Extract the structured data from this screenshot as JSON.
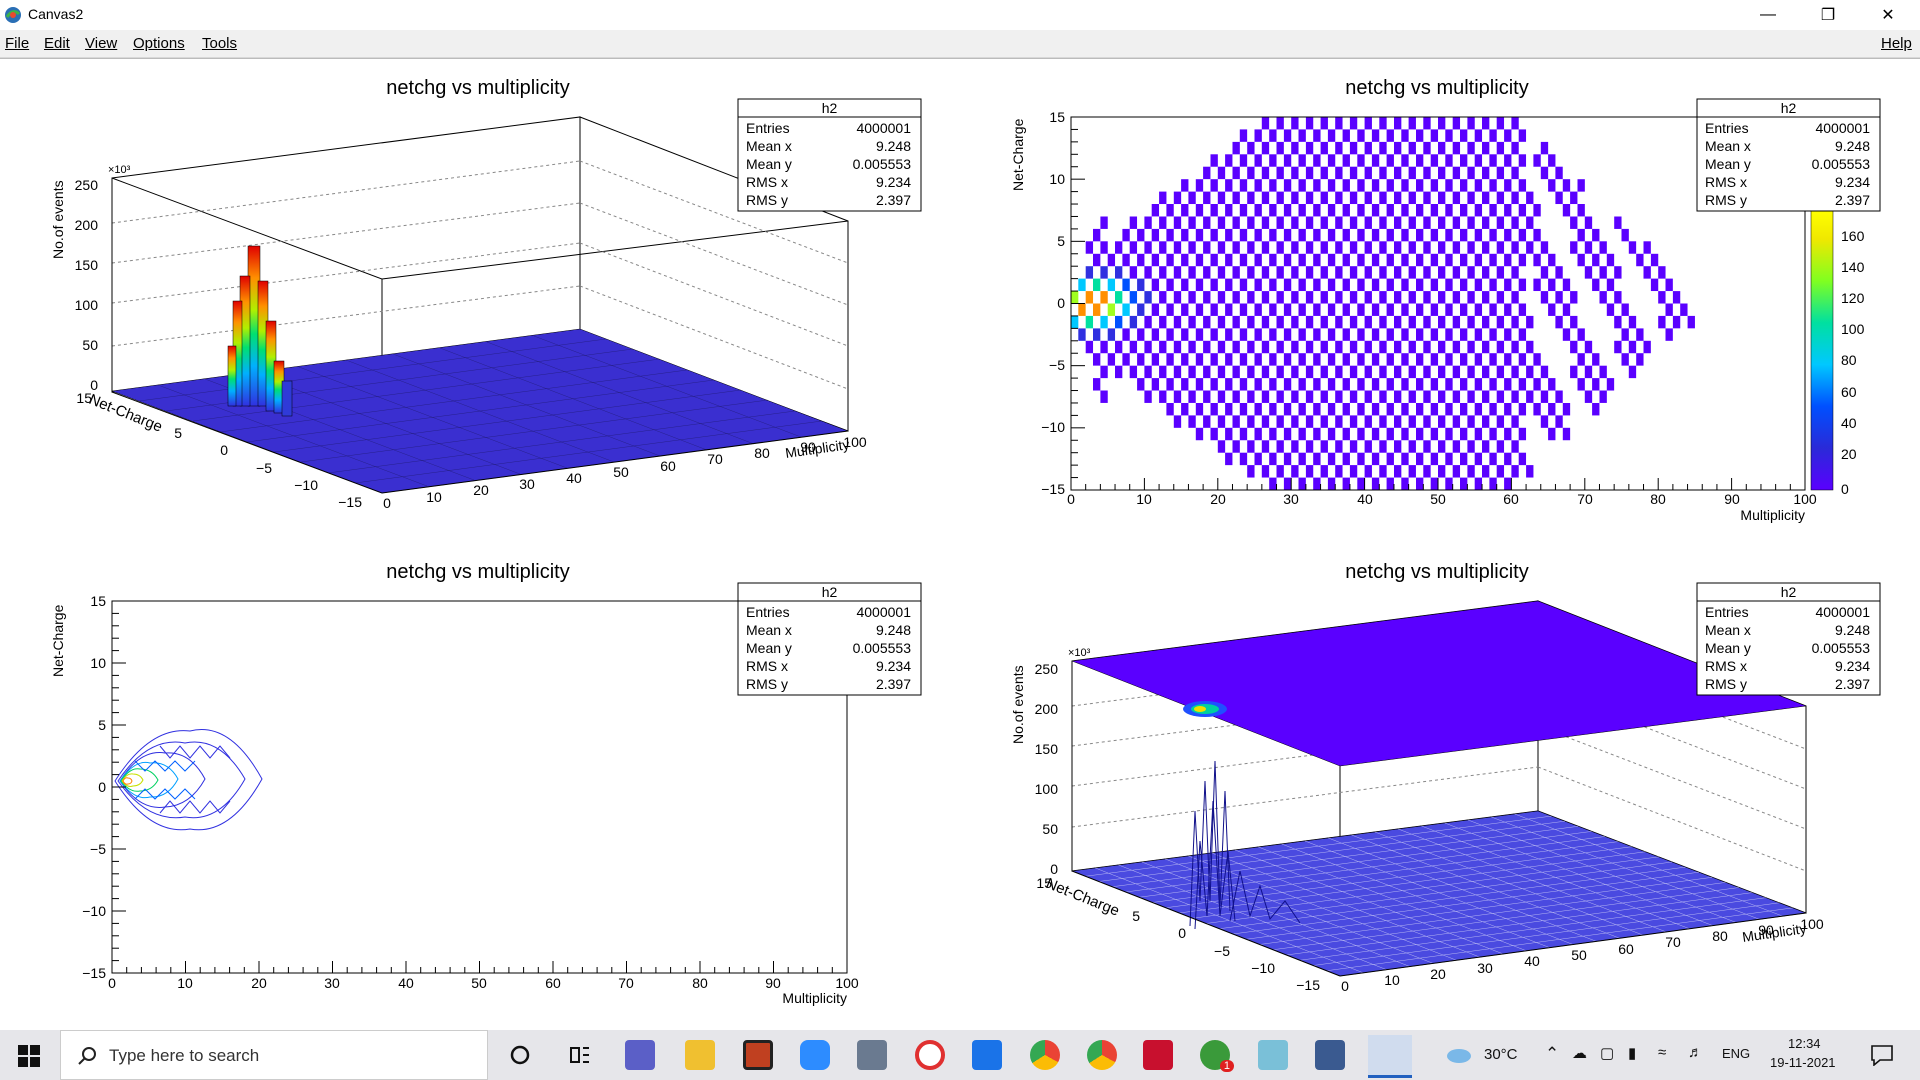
{
  "window": {
    "title": "Canvas2"
  },
  "menu": {
    "file": "File",
    "edit": "Edit",
    "view": "View",
    "options": "Options",
    "tools": "Tools",
    "help": "Help"
  },
  "title": "netchg vs multiplicity",
  "stats": {
    "name": "h2",
    "rows": [
      {
        "label": "Entries",
        "value": "4000001"
      },
      {
        "label": "Mean x",
        "value": "9.248"
      },
      {
        "label": "Mean y",
        "value": "0.005553"
      },
      {
        "label": "RMS x",
        "value": "9.234"
      },
      {
        "label": "RMS y",
        "value": "2.397"
      }
    ]
  },
  "axes": {
    "x_title": "Multiplicity",
    "y_title": "Net-Charge",
    "z_title": "No.of events",
    "z_exponent": "×10³",
    "x_ticks": [
      "0",
      "10",
      "20",
      "30",
      "40",
      "50",
      "60",
      "70",
      "80",
      "90",
      "100"
    ],
    "y_ticks": [
      "15",
      "10",
      "5",
      "0",
      "−5",
      "−10",
      "−15"
    ],
    "z_ticks": [
      "250",
      "200",
      "150",
      "100",
      "50",
      "0"
    ],
    "palette_ticks": [
      "160",
      "140",
      "120",
      "100",
      "80",
      "60",
      "40",
      "20",
      "0"
    ]
  },
  "chart_data": [
    {
      "type": "heatmap",
      "style": "lego",
      "title": "netchg vs multiplicity",
      "xlabel": "Multiplicity",
      "ylabel": "Net-Charge",
      "zlabel": "No.of events",
      "xlim": [
        0,
        100
      ],
      "ylim": [
        -15,
        15
      ],
      "zlim": [
        0,
        250000
      ],
      "peak": {
        "x": 3,
        "y": 0,
        "z": 175000
      }
    },
    {
      "type": "heatmap",
      "style": "colz",
      "title": "netchg vs multiplicity",
      "xlabel": "Multiplicity",
      "ylabel": "Net-Charge",
      "xlim": [
        0,
        100
      ],
      "ylim": [
        -15,
        15
      ],
      "zlim": [
        0,
        170
      ]
    },
    {
      "type": "heatmap",
      "style": "contour",
      "title": "netchg vs multiplicity",
      "xlabel": "Multiplicity",
      "ylabel": "Net-Charge",
      "xlim": [
        0,
        100
      ],
      "ylim": [
        -15,
        15
      ]
    },
    {
      "type": "heatmap",
      "style": "surface",
      "title": "netchg vs multiplicity",
      "xlabel": "Multiplicity",
      "ylabel": "Net-Charge",
      "zlabel": "No.of events",
      "xlim": [
        0,
        100
      ],
      "ylim": [
        -15,
        15
      ],
      "zlim": [
        0,
        250000
      ]
    }
  ],
  "taskbar": {
    "search_placeholder": "Type here to search",
    "weather": "30°C",
    "lang": "ENG",
    "time": "12:34",
    "date": "19-11-2021",
    "badge": "1"
  }
}
